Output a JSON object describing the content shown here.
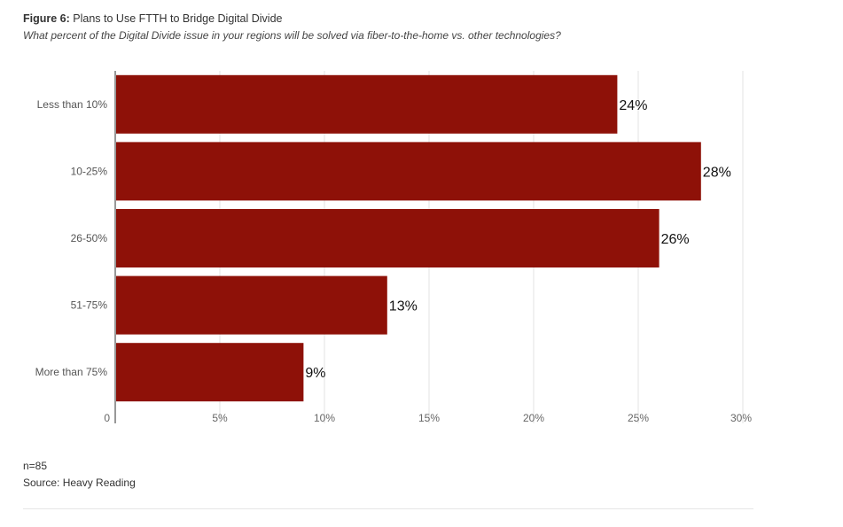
{
  "header": {
    "figure_label": "Figure 6:",
    "title": "Plans to Use FTTH to Bridge Digital Divide",
    "subtitle": "What percent of the Digital Divide issue in your regions will be solved via fiber-to-the-home vs. other technologies?"
  },
  "footer": {
    "n": "n=85",
    "source": "Source: Heavy Reading"
  },
  "chart_data": {
    "type": "bar",
    "orientation": "horizontal",
    "categories": [
      "Less than 10%",
      "10-25%",
      "26-50%",
      "51-75%",
      "More than 75%"
    ],
    "values": [
      24,
      28,
      26,
      13,
      9
    ],
    "data_labels": [
      "24%",
      "28%",
      "26%",
      "13%",
      "9%"
    ],
    "xlim": [
      0,
      30
    ],
    "x_ticks": [
      0,
      5,
      10,
      15,
      20,
      25,
      30
    ],
    "x_tick_labels": [
      "0",
      "5%",
      "10%",
      "15%",
      "20%",
      "25%",
      "30%"
    ],
    "bar_color": "#8e1108",
    "grid": true,
    "legend": "none",
    "title": "",
    "xlabel": "",
    "ylabel": ""
  }
}
